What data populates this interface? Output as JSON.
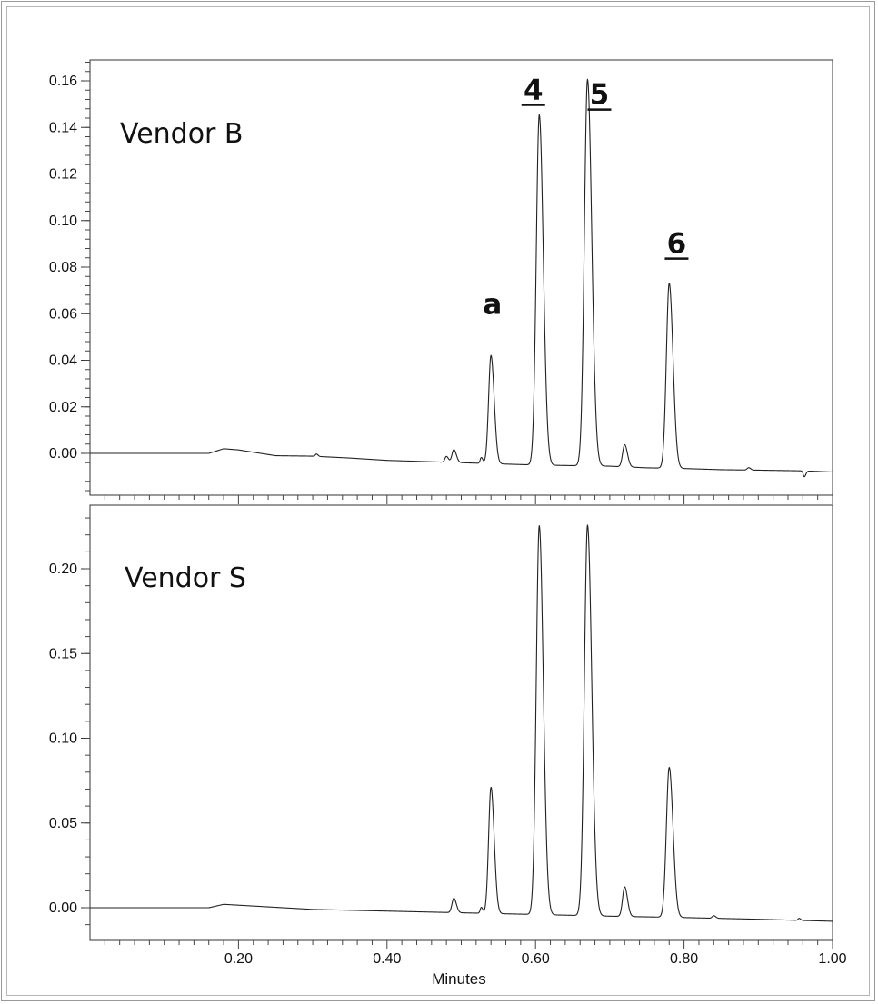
{
  "chart_data": [
    {
      "type": "line",
      "panel_label": "Vendor B",
      "xlabel": "",
      "ylabel": "",
      "xlim": [
        0.0,
        1.0
      ],
      "ylim": [
        -0.018,
        0.168
      ],
      "yticks": [
        0.0,
        0.02,
        0.04,
        0.06,
        0.08,
        0.1,
        0.12,
        0.14,
        0.16
      ],
      "ytick_labels": [
        "0.00",
        "0.02",
        "0.04",
        "0.06",
        "0.08",
        "0.10",
        "0.12",
        "0.14",
        "0.16"
      ],
      "grid": false,
      "peak_annotations": [
        {
          "text": "a",
          "x": 0.542,
          "y": 0.06,
          "underline": false
        },
        {
          "text": "4",
          "x": 0.597,
          "y": 0.152,
          "underline": true
        },
        {
          "text": "5",
          "x": 0.686,
          "y": 0.15,
          "underline": true
        },
        {
          "text": "6",
          "x": 0.79,
          "y": 0.086,
          "underline": true
        }
      ],
      "series": [
        {
          "baseline": [
            [
              0.0,
              0.0
            ],
            [
              0.16,
              0.0
            ],
            [
              0.18,
              0.002
            ],
            [
              0.2,
              0.0015
            ],
            [
              0.25,
              -0.001
            ],
            [
              0.3,
              -0.0012
            ],
            [
              0.35,
              -0.002
            ],
            [
              0.4,
              -0.003
            ],
            [
              0.45,
              -0.0035
            ],
            [
              0.5,
              -0.004
            ],
            [
              0.6,
              -0.005
            ],
            [
              0.7,
              -0.0055
            ],
            [
              0.75,
              -0.0062
            ],
            [
              0.8,
              -0.0065
            ],
            [
              0.85,
              -0.007
            ],
            [
              0.9,
              -0.0072
            ],
            [
              0.96,
              -0.0075
            ],
            [
              1.0,
              -0.008
            ]
          ],
          "peaks": [
            {
              "x": 0.305,
              "height": 0.001,
              "width": 0.0015
            },
            {
              "x": 0.48,
              "height": 0.001,
              "width": 0.002
            },
            {
              "x": 0.48,
              "height": 0.0015,
              "width": 0.002
            },
            {
              "x": 0.49,
              "height": 0.0055,
              "width": 0.0025
            },
            {
              "x": 0.527,
              "height": 0.0025,
              "width": 0.0015
            },
            {
              "x": 0.54,
              "height": 0.0465,
              "width": 0.0032
            },
            {
              "x": 0.605,
              "height": 0.1505,
              "width": 0.004
            },
            {
              "x": 0.67,
              "height": 0.166,
              "width": 0.0042
            },
            {
              "x": 0.72,
              "height": 0.0095,
              "width": 0.0028
            },
            {
              "x": 0.78,
              "height": 0.0795,
              "width": 0.0038
            },
            {
              "x": 0.887,
              "height": 0.001,
              "width": 0.002
            },
            {
              "x": 0.962,
              "height": -0.0025,
              "width": 0.0015
            }
          ]
        }
      ]
    },
    {
      "type": "line",
      "panel_label": "Vendor S",
      "xlabel": "Minutes",
      "ylabel": "",
      "xlim": [
        0.0,
        1.0
      ],
      "xticks": [
        0.2,
        0.4,
        0.6,
        0.8,
        1.0
      ],
      "xtick_labels": [
        "0.20",
        "0.40",
        "0.60",
        "0.80",
        "1.00"
      ],
      "ylim": [
        -0.018,
        0.236
      ],
      "yticks": [
        0.0,
        0.05,
        0.1,
        0.15,
        0.2
      ],
      "ytick_labels": [
        "0.00",
        "0.05",
        "0.10",
        "0.15",
        "0.20"
      ],
      "grid": false,
      "series": [
        {
          "baseline": [
            [
              0.0,
              0.0
            ],
            [
              0.16,
              0.0
            ],
            [
              0.18,
              0.002
            ],
            [
              0.2,
              0.0015
            ],
            [
              0.3,
              -0.001
            ],
            [
              0.4,
              -0.002
            ],
            [
              0.5,
              -0.003
            ],
            [
              0.6,
              -0.004
            ],
            [
              0.7,
              -0.005
            ],
            [
              0.8,
              -0.0058
            ],
            [
              0.9,
              -0.0068
            ],
            [
              1.0,
              -0.008
            ]
          ],
          "peaks": [
            {
              "x": 0.49,
              "height": 0.0085,
              "width": 0.0025
            },
            {
              "x": 0.527,
              "height": 0.0035,
              "width": 0.0015
            },
            {
              "x": 0.54,
              "height": 0.0745,
              "width": 0.0032
            },
            {
              "x": 0.605,
              "height": 0.2295,
              "width": 0.004
            },
            {
              "x": 0.67,
              "height": 0.2305,
              "width": 0.0042
            },
            {
              "x": 0.72,
              "height": 0.0175,
              "width": 0.0028
            },
            {
              "x": 0.78,
              "height": 0.0885,
              "width": 0.0038
            },
            {
              "x": 0.84,
              "height": 0.0015,
              "width": 0.002
            },
            {
              "x": 0.955,
              "height": 0.0012,
              "width": 0.0015
            }
          ]
        }
      ]
    }
  ]
}
